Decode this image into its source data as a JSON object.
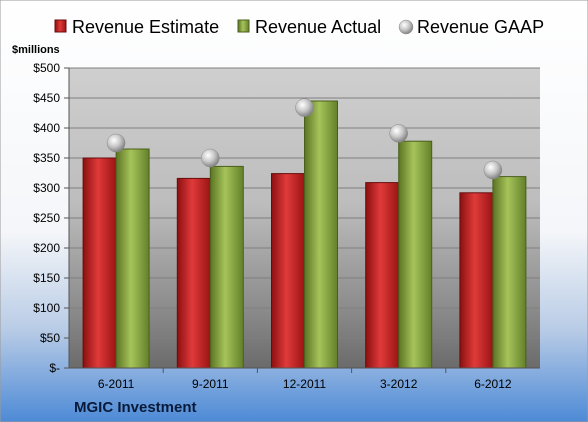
{
  "chart_data": {
    "type": "bar",
    "categories": [
      "6-2011",
      "9-2011",
      "12-2011",
      "3-2012",
      "6-2012"
    ],
    "series": [
      {
        "name": "Revenue Estimate",
        "type": "bar",
        "color": "#cc2020",
        "values": [
          350,
          316,
          324,
          309,
          292
        ]
      },
      {
        "name": "Revenue Actual",
        "type": "bar",
        "color": "#8aaa3e",
        "values": [
          365,
          336,
          445,
          378,
          319
        ]
      },
      {
        "name": "Revenue GAAP",
        "type": "marker",
        "color": "#b8b8b8",
        "values": [
          375,
          350,
          434,
          391,
          330
        ]
      }
    ],
    "ylabel": "$millions",
    "ylim": [
      0,
      500
    ],
    "yticks": [
      0,
      50,
      100,
      150,
      200,
      250,
      300,
      350,
      400,
      450,
      500
    ],
    "ytick_labels": [
      "$-",
      "$50",
      "$100",
      "$150",
      "$200",
      "$250",
      "$300",
      "$350",
      "$400",
      "$450",
      "$500"
    ],
    "grid": true,
    "legend": "top"
  },
  "company_name": "MGIC Investment"
}
